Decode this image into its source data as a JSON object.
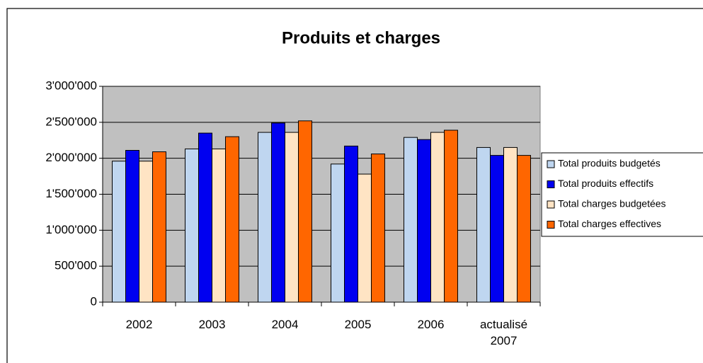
{
  "chart_data": {
    "type": "bar",
    "title": "Produits et charges",
    "categories": [
      "2002",
      "2003",
      "2004",
      "2005",
      "2006",
      "actualisé 2007"
    ],
    "series": [
      {
        "name": "Total produits budgetés",
        "color": "#bfd6f0",
        "values": [
          1960000,
          2130000,
          2360000,
          1920000,
          2290000,
          2150000
        ]
      },
      {
        "name": "Total produits effectifs",
        "color": "#0000f0",
        "values": [
          2110000,
          2350000,
          2490000,
          2170000,
          2260000,
          2040000
        ]
      },
      {
        "name": "Total charges budgetées",
        "color": "#ffe4c4",
        "values": [
          1960000,
          2130000,
          2360000,
          1780000,
          2360000,
          2150000
        ]
      },
      {
        "name": "Total charges effectives",
        "color": "#ff6600",
        "values": [
          2090000,
          2300000,
          2520000,
          2060000,
          2390000,
          2040000
        ]
      }
    ],
    "ylim": [
      0,
      3000000
    ],
    "yticks": [
      0,
      {
        "value": 500000,
        "label": "500'000"
      },
      {
        "value": 1000000,
        "label": "1'000'000"
      },
      {
        "value": 1500000,
        "label": "1'500'000"
      },
      {
        "value": 2000000,
        "label": "2'000'000"
      },
      {
        "value": 2500000,
        "label": "2'500'000"
      },
      {
        "value": 3000000,
        "label": "3'000'000"
      }
    ],
    "grid": true,
    "legend": "right"
  }
}
